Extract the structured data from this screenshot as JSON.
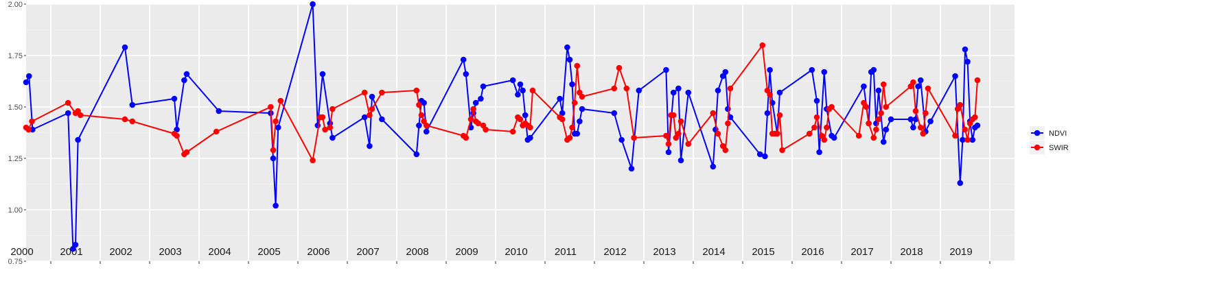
{
  "chart_data": {
    "type": "line",
    "title": "",
    "xlabel": "",
    "ylabel": "",
    "ylim": [
      0.75,
      2.0
    ],
    "y_ticks": [
      "0.75",
      "1.00",
      "1.25",
      "1.50",
      "1.75",
      "2.00"
    ],
    "xlim": [
      2000.0,
      2020.0
    ],
    "year_labels": [
      "2000",
      "2001",
      "2002",
      "2003",
      "2004",
      "2005",
      "2006",
      "2007",
      "2008",
      "2009",
      "2010",
      "2011",
      "2012",
      "2013",
      "2014",
      "2015",
      "2016",
      "2017",
      "2018",
      "2019"
    ],
    "grid": true,
    "legend_position": "right",
    "series": [
      {
        "name": "NDVI",
        "color": "#0000ff",
        "points": [
          [
            2000.0,
            1.62
          ],
          [
            2000.06,
            1.65
          ],
          [
            2000.13,
            1.39
          ],
          [
            2000.85,
            1.47
          ],
          [
            2000.95,
            0.81
          ],
          [
            2001.0,
            0.83
          ],
          [
            2001.05,
            1.34
          ],
          [
            2002.0,
            1.79
          ],
          [
            2002.15,
            1.51
          ],
          [
            2003.0,
            1.54
          ],
          [
            2003.05,
            1.39
          ],
          [
            2003.2,
            1.63
          ],
          [
            2003.25,
            1.66
          ],
          [
            2003.9,
            1.48
          ],
          [
            2004.95,
            1.47
          ],
          [
            2005.0,
            1.25
          ],
          [
            2005.05,
            1.02
          ],
          [
            2005.1,
            1.4
          ],
          [
            2005.8,
            2.0
          ],
          [
            2005.9,
            1.41
          ],
          [
            2006.0,
            1.66
          ],
          [
            2006.15,
            1.42
          ],
          [
            2006.2,
            1.35
          ],
          [
            2006.85,
            1.45
          ],
          [
            2006.95,
            1.31
          ],
          [
            2007.0,
            1.55
          ],
          [
            2007.2,
            1.44
          ],
          [
            2007.9,
            1.27
          ],
          [
            2007.95,
            1.41
          ],
          [
            2008.0,
            1.53
          ],
          [
            2008.05,
            1.52
          ],
          [
            2008.1,
            1.38
          ],
          [
            2008.85,
            1.73
          ],
          [
            2008.9,
            1.66
          ],
          [
            2009.0,
            1.4
          ],
          [
            2009.05,
            1.47
          ],
          [
            2009.1,
            1.52
          ],
          [
            2009.2,
            1.54
          ],
          [
            2009.25,
            1.6
          ],
          [
            2009.85,
            1.63
          ],
          [
            2009.95,
            1.56
          ],
          [
            2010.0,
            1.61
          ],
          [
            2010.05,
            1.58
          ],
          [
            2010.1,
            1.46
          ],
          [
            2010.15,
            1.34
          ],
          [
            2010.2,
            1.35
          ],
          [
            2010.8,
            1.54
          ],
          [
            2010.85,
            1.47
          ],
          [
            2010.95,
            1.79
          ],
          [
            2011.0,
            1.73
          ],
          [
            2011.05,
            1.61
          ],
          [
            2011.1,
            1.37
          ],
          [
            2011.15,
            1.37
          ],
          [
            2011.2,
            1.43
          ],
          [
            2011.25,
            1.49
          ],
          [
            2011.9,
            1.47
          ],
          [
            2012.05,
            1.34
          ],
          [
            2012.25,
            1.2
          ],
          [
            2012.4,
            1.58
          ],
          [
            2012.95,
            1.68
          ],
          [
            2013.0,
            1.28
          ],
          [
            2013.1,
            1.57
          ],
          [
            2013.2,
            1.59
          ],
          [
            2013.25,
            1.24
          ],
          [
            2013.4,
            1.57
          ],
          [
            2013.9,
            1.21
          ],
          [
            2013.95,
            1.39
          ],
          [
            2014.0,
            1.58
          ],
          [
            2014.1,
            1.65
          ],
          [
            2014.15,
            1.67
          ],
          [
            2014.2,
            1.49
          ],
          [
            2014.25,
            1.45
          ],
          [
            2014.85,
            1.27
          ],
          [
            2014.95,
            1.26
          ],
          [
            2015.0,
            1.47
          ],
          [
            2015.05,
            1.68
          ],
          [
            2015.1,
            1.52
          ],
          [
            2015.2,
            1.37
          ],
          [
            2015.25,
            1.57
          ],
          [
            2015.9,
            1.68
          ],
          [
            2016.0,
            1.53
          ],
          [
            2016.05,
            1.28
          ],
          [
            2016.15,
            1.67
          ],
          [
            2016.2,
            1.49
          ],
          [
            2016.3,
            1.36
          ],
          [
            2016.35,
            1.35
          ],
          [
            2016.95,
            1.6
          ],
          [
            2017.05,
            1.42
          ],
          [
            2017.1,
            1.67
          ],
          [
            2017.15,
            1.68
          ],
          [
            2017.2,
            1.42
          ],
          [
            2017.25,
            1.58
          ],
          [
            2017.35,
            1.33
          ],
          [
            2017.4,
            1.39
          ],
          [
            2017.5,
            1.44
          ],
          [
            2017.9,
            1.44
          ],
          [
            2017.95,
            1.4
          ],
          [
            2018.0,
            1.44
          ],
          [
            2018.05,
            1.6
          ],
          [
            2018.1,
            1.63
          ],
          [
            2018.2,
            1.38
          ],
          [
            2018.3,
            1.43
          ],
          [
            2018.8,
            1.65
          ],
          [
            2018.9,
            1.13
          ],
          [
            2018.95,
            1.34
          ],
          [
            2019.0,
            1.78
          ],
          [
            2019.05,
            1.72
          ],
          [
            2019.1,
            1.43
          ],
          [
            2019.15,
            1.34
          ],
          [
            2019.2,
            1.4
          ],
          [
            2019.25,
            1.41
          ]
        ]
      },
      {
        "name": "SWIR",
        "color": "#ff0000",
        "points": [
          [
            2000.0,
            1.4
          ],
          [
            2000.05,
            1.39
          ],
          [
            2000.12,
            1.43
          ],
          [
            2000.85,
            1.52
          ],
          [
            2001.0,
            1.47
          ],
          [
            2001.05,
            1.48
          ],
          [
            2001.1,
            1.46
          ],
          [
            2002.0,
            1.44
          ],
          [
            2002.15,
            1.43
          ],
          [
            2003.0,
            1.37
          ],
          [
            2003.05,
            1.36
          ],
          [
            2003.2,
            1.27
          ],
          [
            2003.25,
            1.28
          ],
          [
            2003.85,
            1.38
          ],
          [
            2004.95,
            1.5
          ],
          [
            2005.0,
            1.29
          ],
          [
            2005.05,
            1.43
          ],
          [
            2005.15,
            1.53
          ],
          [
            2005.8,
            1.24
          ],
          [
            2005.95,
            1.45
          ],
          [
            2006.0,
            1.45
          ],
          [
            2006.05,
            1.39
          ],
          [
            2006.15,
            1.4
          ],
          [
            2006.2,
            1.49
          ],
          [
            2006.85,
            1.57
          ],
          [
            2006.95,
            1.46
          ],
          [
            2007.0,
            1.49
          ],
          [
            2007.2,
            1.57
          ],
          [
            2007.9,
            1.58
          ],
          [
            2007.95,
            1.51
          ],
          [
            2008.0,
            1.46
          ],
          [
            2008.05,
            1.43
          ],
          [
            2008.1,
            1.41
          ],
          [
            2008.85,
            1.36
          ],
          [
            2008.9,
            1.35
          ],
          [
            2009.0,
            1.44
          ],
          [
            2009.05,
            1.49
          ],
          [
            2009.1,
            1.43
          ],
          [
            2009.15,
            1.42
          ],
          [
            2009.25,
            1.41
          ],
          [
            2009.3,
            1.39
          ],
          [
            2009.85,
            1.38
          ],
          [
            2009.95,
            1.45
          ],
          [
            2010.0,
            1.44
          ],
          [
            2010.05,
            1.41
          ],
          [
            2010.1,
            1.42
          ],
          [
            2010.15,
            1.41
          ],
          [
            2010.2,
            1.4
          ],
          [
            2010.25,
            1.58
          ],
          [
            2010.8,
            1.45
          ],
          [
            2010.85,
            1.44
          ],
          [
            2010.95,
            1.34
          ],
          [
            2011.0,
            1.35
          ],
          [
            2011.05,
            1.4
          ],
          [
            2011.1,
            1.52
          ],
          [
            2011.15,
            1.7
          ],
          [
            2011.2,
            1.57
          ],
          [
            2011.25,
            1.55
          ],
          [
            2011.9,
            1.59
          ],
          [
            2012.0,
            1.69
          ],
          [
            2012.15,
            1.59
          ],
          [
            2012.3,
            1.35
          ],
          [
            2012.95,
            1.36
          ],
          [
            2013.0,
            1.32
          ],
          [
            2013.05,
            1.46
          ],
          [
            2013.1,
            1.46
          ],
          [
            2013.15,
            1.35
          ],
          [
            2013.2,
            1.37
          ],
          [
            2013.25,
            1.43
          ],
          [
            2013.4,
            1.32
          ],
          [
            2013.9,
            1.47
          ],
          [
            2014.0,
            1.37
          ],
          [
            2014.1,
            1.31
          ],
          [
            2014.15,
            1.29
          ],
          [
            2014.2,
            1.42
          ],
          [
            2014.25,
            1.59
          ],
          [
            2014.9,
            1.8
          ],
          [
            2015.0,
            1.58
          ],
          [
            2015.05,
            1.56
          ],
          [
            2015.1,
            1.37
          ],
          [
            2015.15,
            1.37
          ],
          [
            2015.2,
            1.37
          ],
          [
            2015.25,
            1.46
          ],
          [
            2015.3,
            1.29
          ],
          [
            2015.85,
            1.37
          ],
          [
            2015.95,
            1.4
          ],
          [
            2016.0,
            1.45
          ],
          [
            2016.1,
            1.36
          ],
          [
            2016.15,
            1.34
          ],
          [
            2016.2,
            1.4
          ],
          [
            2016.25,
            1.49
          ],
          [
            2016.3,
            1.5
          ],
          [
            2016.85,
            1.36
          ],
          [
            2016.95,
            1.52
          ],
          [
            2017.0,
            1.5
          ],
          [
            2017.05,
            1.42
          ],
          [
            2017.15,
            1.35
          ],
          [
            2017.2,
            1.39
          ],
          [
            2017.25,
            1.44
          ],
          [
            2017.3,
            1.47
          ],
          [
            2017.35,
            1.61
          ],
          [
            2017.4,
            1.5
          ],
          [
            2017.9,
            1.6
          ],
          [
            2017.95,
            1.62
          ],
          [
            2018.0,
            1.48
          ],
          [
            2018.1,
            1.4
          ],
          [
            2018.15,
            1.37
          ],
          [
            2018.2,
            1.47
          ],
          [
            2018.25,
            1.59
          ],
          [
            2018.8,
            1.36
          ],
          [
            2018.85,
            1.49
          ],
          [
            2018.9,
            1.51
          ],
          [
            2019.0,
            1.39
          ],
          [
            2019.05,
            1.34
          ],
          [
            2019.1,
            1.42
          ],
          [
            2019.15,
            1.44
          ],
          [
            2019.2,
            1.45
          ],
          [
            2019.25,
            1.63
          ]
        ]
      }
    ]
  }
}
